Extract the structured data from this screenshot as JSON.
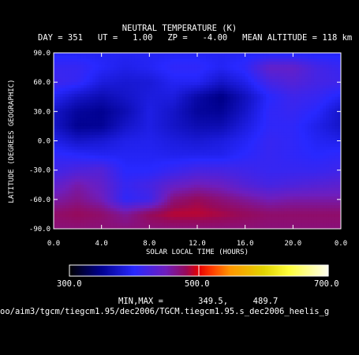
{
  "header": {
    "title": "NEUTRAL TEMPERATURE (K)",
    "subtitle": "DAY = 351   UT =   1.00   ZP =   -4.00   MEAN ALTITUDE = 118 km"
  },
  "chart_data": {
    "type": "heatmap",
    "title": "NEUTRAL TEMPERATURE (K)",
    "xlabel": "SOLAR LOCAL TIME (HOURS)",
    "ylabel": "LATITUDE (DEGREES GEOGRAPHIC)",
    "x_tick_labels": [
      "0.0",
      "4.0",
      "8.0",
      "12.0",
      "16.0",
      "20.0",
      "0.0"
    ],
    "y_tick_labels": [
      "90.0",
      "60.0",
      "30.0",
      "0.0",
      "-30.0",
      "-60.0",
      "-90.0"
    ],
    "xlim": [
      0,
      24
    ],
    "ylim": [
      -90,
      90
    ],
    "colorbar": {
      "min_label": "300.0",
      "mid_label": "500.0",
      "max_label": "700.0",
      "range": [
        300,
        700
      ]
    },
    "x": [
      0,
      2,
      4,
      6,
      8,
      10,
      12,
      14,
      16,
      18,
      20,
      22,
      24
    ],
    "y": [
      90,
      75,
      60,
      45,
      30,
      15,
      0,
      -15,
      -30,
      -45,
      -60,
      -75,
      -90
    ],
    "values": [
      [
        395,
        395,
        395,
        395,
        395,
        395,
        395,
        395,
        395,
        395,
        395,
        395,
        395
      ],
      [
        410,
        410,
        398,
        390,
        395,
        405,
        405,
        395,
        405,
        440,
        440,
        420,
        410
      ],
      [
        415,
        408,
        385,
        380,
        382,
        395,
        395,
        375,
        390,
        420,
        430,
        420,
        415
      ],
      [
        395,
        375,
        365,
        375,
        385,
        385,
        360,
        345,
        370,
        400,
        415,
        410,
        395
      ],
      [
        375,
        355,
        350,
        365,
        388,
        375,
        355,
        352,
        375,
        405,
        410,
        400,
        375
      ],
      [
        375,
        350,
        352,
        375,
        388,
        375,
        365,
        365,
        385,
        405,
        405,
        390,
        375
      ],
      [
        390,
        375,
        380,
        390,
        392,
        385,
        380,
        385,
        395,
        410,
        405,
        395,
        390
      ],
      [
        405,
        400,
        395,
        395,
        395,
        392,
        392,
        392,
        402,
        410,
        405,
        400,
        405
      ],
      [
        415,
        425,
        430,
        400,
        400,
        410,
        420,
        420,
        415,
        410,
        410,
        410,
        415
      ],
      [
        435,
        455,
        440,
        410,
        420,
        440,
        450,
        445,
        430,
        420,
        425,
        430,
        435
      ],
      [
        455,
        465,
        450,
        405,
        415,
        470,
        480,
        470,
        460,
        450,
        455,
        455,
        455
      ],
      [
        475,
        480,
        475,
        460,
        480,
        489,
        489,
        485,
        480,
        475,
        475,
        475,
        475
      ],
      [
        470,
        470,
        470,
        470,
        470,
        470,
        470,
        470,
        470,
        470,
        470,
        470,
        470
      ]
    ]
  },
  "footer": {
    "minmax": "MIN,MAX =       349.5,     489.7",
    "path": "oo/aim3/tgcm/tiegcm1.95/dec2006/TGCM.tiegcm1.95.s_dec2006_heelis_g"
  }
}
